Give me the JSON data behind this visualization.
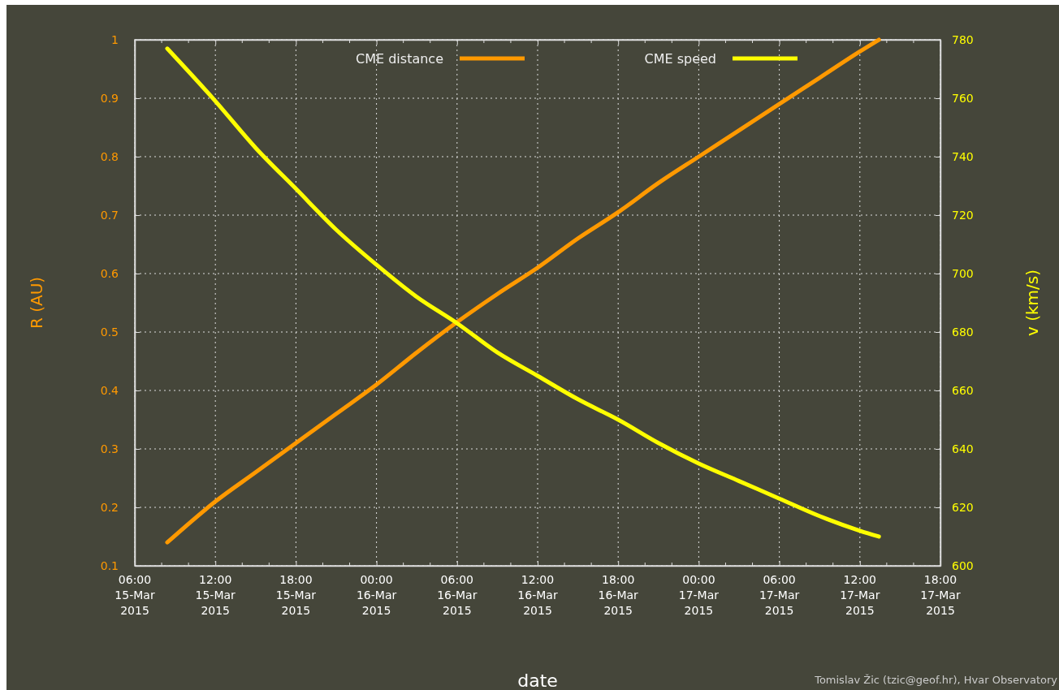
{
  "chart_data": {
    "type": "line",
    "xlabel": "date",
    "ylabel": "R (AU)",
    "y2label": "v (km/s)",
    "xlim": [
      "2015-03-15T06:00",
      "2015-03-17T18:00"
    ],
    "xticks": [
      {
        "value": "2015-03-15T06:00",
        "label": "06:00\n15-Mar\n2015"
      },
      {
        "value": "2015-03-15T12:00",
        "label": "12:00\n15-Mar\n2015"
      },
      {
        "value": "2015-03-15T18:00",
        "label": "18:00\n15-Mar\n2015"
      },
      {
        "value": "2015-03-16T00:00",
        "label": "00:00\n16-Mar\n2015"
      },
      {
        "value": "2015-03-16T06:00",
        "label": "06:00\n16-Mar\n2015"
      },
      {
        "value": "2015-03-16T12:00",
        "label": "12:00\n16-Mar\n2015"
      },
      {
        "value": "2015-03-16T18:00",
        "label": "18:00\n16-Mar\n2015"
      },
      {
        "value": "2015-03-17T00:00",
        "label": "00:00\n17-Mar\n2015"
      },
      {
        "value": "2015-03-17T06:00",
        "label": "06:00\n17-Mar\n2015"
      },
      {
        "value": "2015-03-17T12:00",
        "label": "12:00\n17-Mar\n2015"
      },
      {
        "value": "2015-03-17T18:00",
        "label": "18:00\n17-Mar\n2015"
      }
    ],
    "ylim": [
      0.1,
      1
    ],
    "yticks": [
      0.1,
      0.2,
      0.3,
      0.4,
      0.5,
      0.6,
      0.7,
      0.8,
      0.9,
      1
    ],
    "y2lim": [
      600,
      780
    ],
    "y2ticks": [
      600,
      620,
      640,
      660,
      680,
      700,
      720,
      740,
      760,
      780
    ],
    "x": [
      "2015-03-15T08:25",
      "2015-03-15T12:00",
      "2015-03-15T15:00",
      "2015-03-15T18:00",
      "2015-03-15T21:00",
      "2015-03-16T00:00",
      "2015-03-16T03:00",
      "2015-03-16T06:00",
      "2015-03-16T09:00",
      "2015-03-16T12:00",
      "2015-03-16T15:00",
      "2015-03-16T18:00",
      "2015-03-16T21:00",
      "2015-03-17T00:00",
      "2015-03-17T03:00",
      "2015-03-17T06:00",
      "2015-03-17T09:00",
      "2015-03-17T12:00",
      "2015-03-17T13:25"
    ],
    "series": [
      {
        "name": "CME distance",
        "color": "#ff9900",
        "values": [
          0.14,
          0.21,
          0.26,
          0.31,
          0.36,
          0.41,
          0.465,
          0.517,
          0.565,
          0.61,
          0.66,
          0.705,
          0.755,
          0.8,
          0.845,
          0.89,
          0.935,
          0.98,
          1.0
        ]
      },
      {
        "name": "CME speed",
        "color": "#ffff00",
        "axis": "y2",
        "values": [
          777,
          759,
          743,
          729,
          715,
          703,
          692,
          683,
          673,
          665,
          657,
          650,
          642,
          635,
          629,
          623,
          617,
          612,
          610
        ]
      }
    ],
    "grid": true,
    "legend": "top",
    "marker": "none",
    "line_style": "solid",
    "annotations": [
      "Tomislav Žic (tzic@geof.hr), Hvar Observatory"
    ]
  }
}
